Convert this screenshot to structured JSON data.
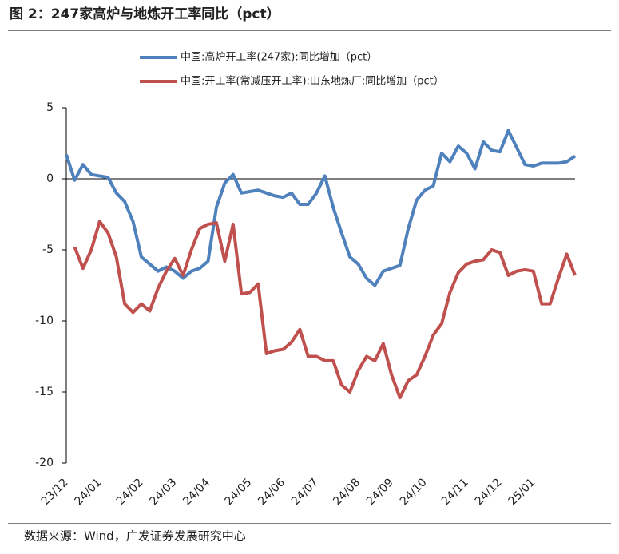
{
  "header": {
    "title": "图 2：247家高炉与地炼开工率同比（pct）"
  },
  "chart_data": {
    "type": "line",
    "categories": [
      "23/12",
      null,
      null,
      null,
      "24/01",
      null,
      null,
      null,
      null,
      "24/02",
      null,
      null,
      null,
      "24/03",
      null,
      null,
      null,
      "24/04",
      null,
      null,
      null,
      null,
      "24/05",
      null,
      null,
      null,
      "24/06",
      null,
      null,
      null,
      "24/07",
      null,
      null,
      null,
      null,
      "24/08",
      null,
      null,
      null,
      "24/09",
      null,
      null,
      null,
      "24/10",
      null,
      null,
      null,
      null,
      "24/11",
      null,
      null,
      null,
      "24/12",
      null,
      null,
      null,
      "25/01",
      null,
      null,
      null,
      null,
      null
    ],
    "series": [
      {
        "name": "中国:高炉开工率(247家):同比增加（pct）",
        "color": "#4f81bd",
        "values": [
          1.7,
          -0.1,
          1.0,
          0.3,
          0.2,
          0.1,
          -1.0,
          -1.6,
          -3.0,
          -5.5,
          -6.0,
          -6.5,
          -6.2,
          -6.5,
          -7.0,
          -6.5,
          -6.3,
          -5.8,
          -2.0,
          -0.3,
          0.3,
          -1.0,
          -0.9,
          -0.8,
          -1.0,
          -1.2,
          -1.3,
          -1.0,
          -1.8,
          -1.8,
          -1.0,
          0.2,
          -2.0,
          -3.8,
          -5.5,
          -6.0,
          -7.0,
          -7.5,
          -6.5,
          -6.3,
          -6.1,
          -3.5,
          -1.5,
          -0.8,
          -0.5,
          1.8,
          1.2,
          2.3,
          1.8,
          0.7,
          2.6,
          2.0,
          1.9,
          3.4,
          2.2,
          1.0,
          0.9,
          1.1,
          1.1,
          1.1,
          1.2,
          1.6
        ]
      },
      {
        "name": "中国:开工率(常减压开工率):山东地炼厂:同比增加（pct）",
        "color": "#c0504d",
        "values": [
          null,
          -4.8,
          -6.3,
          -5.0,
          -3.0,
          -3.8,
          -5.5,
          -8.8,
          -9.4,
          -8.8,
          -9.3,
          -7.7,
          -6.5,
          -5.6,
          -6.8,
          -5.0,
          -3.5,
          -3.2,
          -3.1,
          -5.8,
          -3.2,
          -8.1,
          -8.0,
          -7.4,
          -12.3,
          -12.1,
          -12.0,
          -11.5,
          -10.6,
          -12.5,
          -12.5,
          -12.8,
          -12.8,
          -14.5,
          -15.0,
          -13.5,
          -12.5,
          -12.8,
          -11.6,
          -13.8,
          -15.4,
          -14.2,
          -13.8,
          -12.5,
          -11.0,
          -10.2,
          -8.0,
          -6.6,
          -6.0,
          -5.8,
          -5.7,
          -5.0,
          -5.2,
          -6.8,
          -6.5,
          -6.4,
          -6.5,
          -8.8,
          -8.8,
          -7.0,
          -5.3,
          -6.8
        ]
      }
    ],
    "ylim": [
      -20,
      5
    ],
    "yticks": [
      -20,
      -15,
      -10,
      -5,
      0,
      5
    ],
    "source": "数据来源：Wind，广发证券发展研究中心"
  }
}
